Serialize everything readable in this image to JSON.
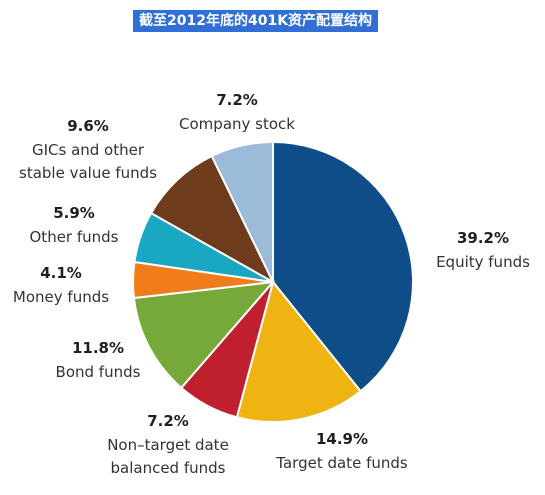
{
  "title": "截至2012年底的401K资产配置结构",
  "chart_data": {
    "type": "pie",
    "title": "截至2012年底的401K资产配置结构",
    "slices": [
      {
        "name": "Equity funds",
        "label_lines": [
          "Equity funds"
        ],
        "value": 39.2,
        "value_label": "39.2%",
        "color": "#0e4d87"
      },
      {
        "name": "Target date funds",
        "label_lines": [
          "Target date funds"
        ],
        "value": 14.9,
        "value_label": "14.9%",
        "color": "#f0b412"
      },
      {
        "name": "Non-target date balanced funds",
        "label_lines": [
          "Non–target date",
          "balanced funds"
        ],
        "value": 7.2,
        "value_label": "7.2%",
        "color": "#c0202e"
      },
      {
        "name": "Bond funds",
        "label_lines": [
          "Bond funds"
        ],
        "value": 11.8,
        "value_label": "11.8%",
        "color": "#77a83a"
      },
      {
        "name": "Money funds",
        "label_lines": [
          "Money funds"
        ],
        "value": 4.1,
        "value_label": "4.1%",
        "color": "#f07d1a"
      },
      {
        "name": "Other funds",
        "label_lines": [
          "Other funds"
        ],
        "value": 5.9,
        "value_label": "5.9%",
        "color": "#1aa7c2"
      },
      {
        "name": "GICs and other stable value funds",
        "label_lines": [
          "GICs and other",
          "stable value funds"
        ],
        "value": 9.6,
        "value_label": "9.6%",
        "color": "#6e3b1c"
      },
      {
        "name": "Company stock",
        "label_lines": [
          "Company stock"
        ],
        "value": 7.2,
        "value_label": "7.2%",
        "color": "#9bbbd8"
      }
    ]
  }
}
